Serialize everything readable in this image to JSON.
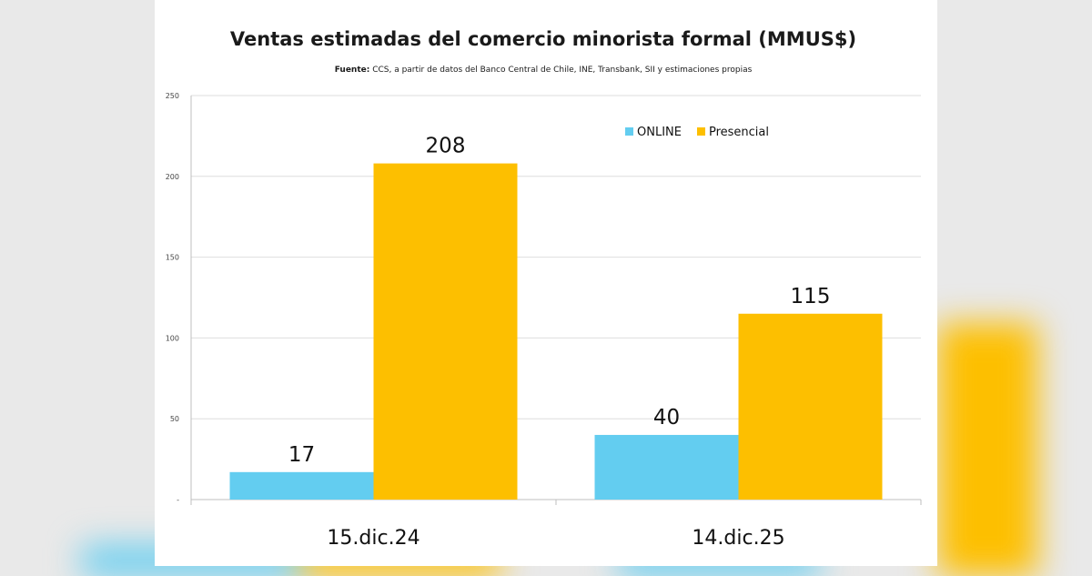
{
  "colors": {
    "online": "#63cdf0",
    "presencial": "#fdbf00",
    "background": "#e9e9e9",
    "card": "#ffffff"
  },
  "chart_data": {
    "type": "bar",
    "title": "Ventas estimadas del comercio minorista formal (MMUS$)",
    "subtitle_bold": "Fuente:",
    "subtitle": " CCS, a partir de datos del Banco Central de Chile, INE, Transbank, SII y estimaciones propias",
    "categories": [
      "15.dic.24",
      "14.dic.25"
    ],
    "series": [
      {
        "name": "ONLINE",
        "values": [
          17,
          40
        ]
      },
      {
        "name": "Presencial",
        "values": [
          208,
          115
        ]
      }
    ],
    "ylim": [
      0,
      250
    ],
    "yticks": [
      0,
      50,
      100,
      150,
      200,
      250
    ],
    "ytick_labels": [
      "-",
      "50",
      "100",
      "150",
      "200",
      "250"
    ],
    "grid": true,
    "legend": "top-right",
    "xlabel": "",
    "ylabel": ""
  }
}
